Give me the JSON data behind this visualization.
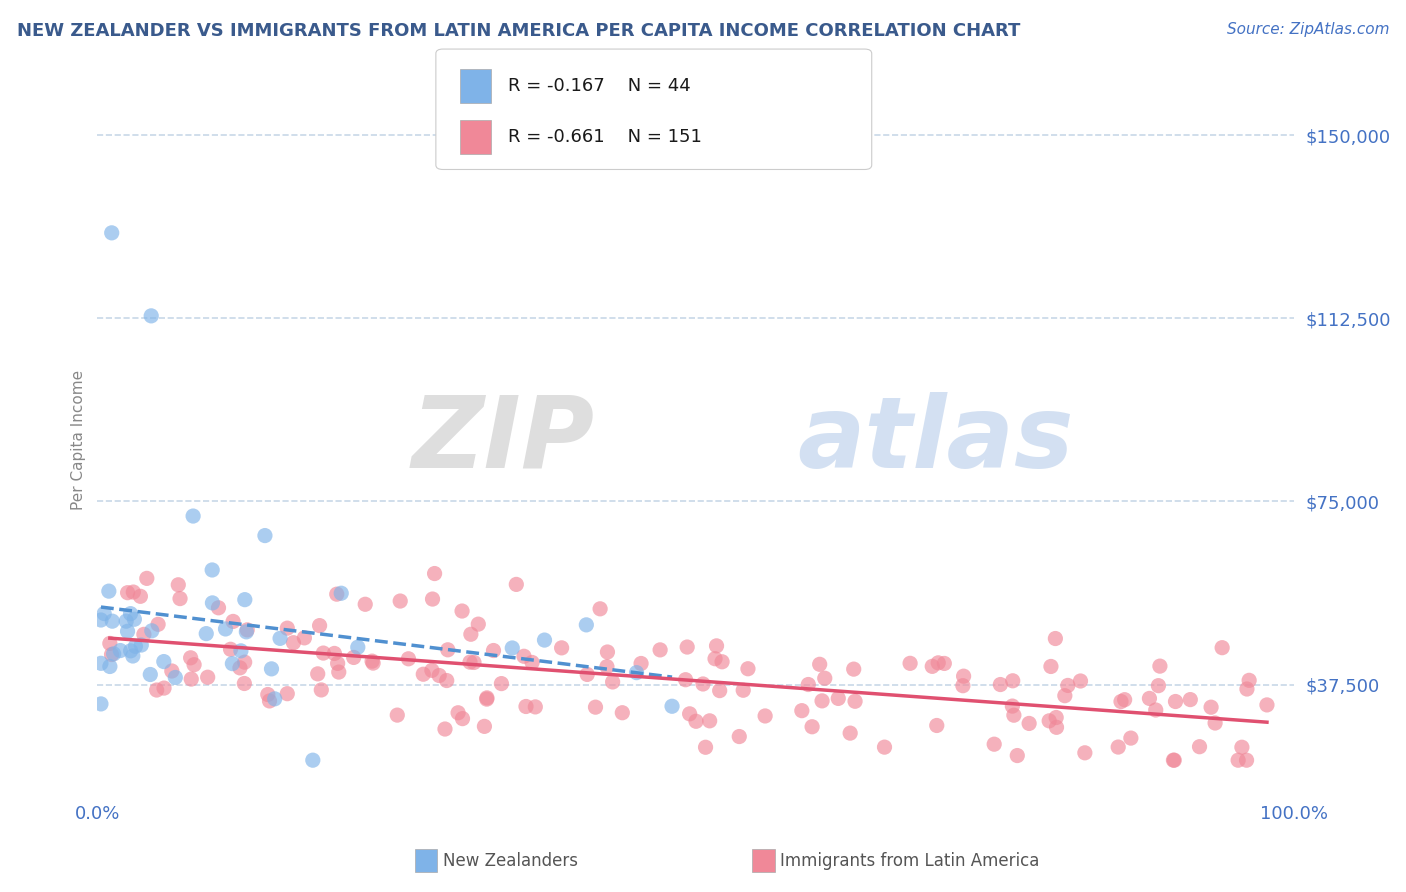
{
  "title": "NEW ZEALANDER VS IMMIGRANTS FROM LATIN AMERICA PER CAPITA INCOME CORRELATION CHART",
  "source": "Source: ZipAtlas.com",
  "ylabel": "Per Capita Income",
  "watermark_zip": "ZIP",
  "watermark_atlas": "atlas",
  "x_min": 0.0,
  "x_max": 100.0,
  "y_min": 15000,
  "y_max": 160000,
  "y_ticks": [
    37500,
    75000,
    112500,
    150000
  ],
  "y_tick_labels": [
    "$37,500",
    "$75,000",
    "$112,500",
    "$150,000"
  ],
  "legend_label1": "New Zealanders",
  "legend_label2": "Immigrants from Latin America",
  "legend_R1": "R = -0.167",
  "legend_N1": "N = 44",
  "legend_R2": "R = -0.661",
  "legend_N2": "N = 151",
  "color_nz": "#7fb3e8",
  "color_nz_dark": "#5090d0",
  "color_la": "#f08898",
  "color_la_line": "#e05070",
  "title_color": "#3a5a8c",
  "axis_color": "#4472c4",
  "source_color": "#4472c4",
  "background_color": "#ffffff",
  "grid_color": "#c8d8e8"
}
